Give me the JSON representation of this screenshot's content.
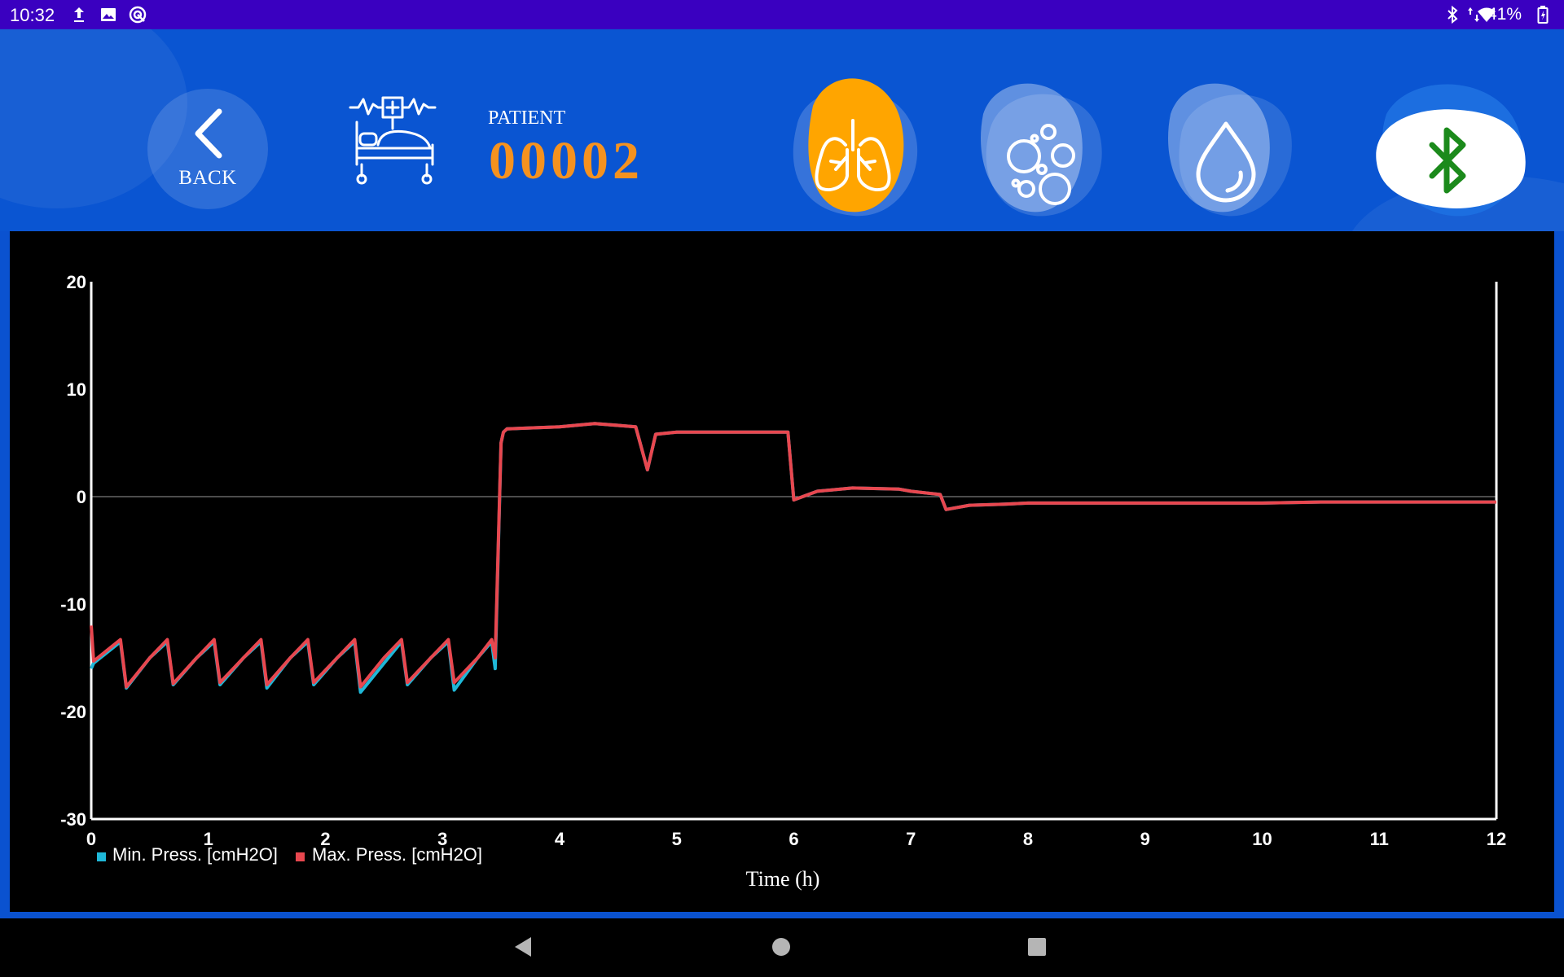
{
  "status_bar": {
    "time": "10:32",
    "battery": "41%",
    "icons": [
      "upload-icon",
      "image-icon",
      "sync-icon",
      "bluetooth-icon",
      "data-arrows-icon",
      "wifi-icon",
      "battery-icon"
    ]
  },
  "header": {
    "back_label": "BACK",
    "patient_label": "PATIENT",
    "patient_id": "00002",
    "modes": [
      {
        "name": "lungs-icon",
        "active": true
      },
      {
        "name": "bubbles-icon",
        "active": false
      },
      {
        "name": "drop-icon",
        "active": false
      },
      {
        "name": "bluetooth-icon",
        "active": true
      }
    ]
  },
  "colors": {
    "header_bg": "#0a55d2",
    "status_bg": "#3a00c0",
    "accent_orange": "#ffa500",
    "patient_id_color": "#f5921f",
    "bluetooth_green": "#1b8a1b",
    "min_series": "#1fb8d8",
    "max_series": "#e8474f"
  },
  "chart_data": {
    "type": "line",
    "xlabel": "Time (h)",
    "xlim": [
      0,
      12
    ],
    "ylim": [
      -30,
      20
    ],
    "xticks": [
      "0",
      "1",
      "2",
      "3",
      "4",
      "5",
      "6",
      "7",
      "8",
      "9",
      "10",
      "11",
      "12"
    ],
    "yticks": [
      "20",
      "10",
      "0",
      "-10",
      "-20",
      "-30"
    ],
    "grid": "zero-line only",
    "legend_placement": "bottom-left",
    "series": [
      {
        "name": "Min. Press. [cmH2O]",
        "color": "#1fb8d8",
        "points": [
          [
            0,
            -16
          ],
          [
            0.02,
            -15.5
          ],
          [
            0.25,
            -13.5
          ],
          [
            0.3,
            -17.8
          ],
          [
            0.5,
            -15
          ],
          [
            0.65,
            -13.5
          ],
          [
            0.7,
            -17.5
          ],
          [
            0.9,
            -15
          ],
          [
            1.05,
            -13.5
          ],
          [
            1.1,
            -17.5
          ],
          [
            1.3,
            -15
          ],
          [
            1.45,
            -13.5
          ],
          [
            1.5,
            -17.8
          ],
          [
            1.7,
            -15
          ],
          [
            1.85,
            -13.5
          ],
          [
            1.9,
            -17.5
          ],
          [
            2.1,
            -15
          ],
          [
            2.25,
            -13.5
          ],
          [
            2.3,
            -18.2
          ],
          [
            2.5,
            -15.5
          ],
          [
            2.65,
            -13.5
          ],
          [
            2.7,
            -17.5
          ],
          [
            2.9,
            -15
          ],
          [
            3.05,
            -13.5
          ],
          [
            3.1,
            -18
          ],
          [
            3.3,
            -15
          ],
          [
            3.42,
            -13.5
          ],
          [
            3.45,
            -16
          ],
          [
            3.5,
            5
          ],
          [
            3.52,
            6
          ],
          [
            3.55,
            6.3
          ],
          [
            4.0,
            6.5
          ],
          [
            4.3,
            6.8
          ],
          [
            4.65,
            6.5
          ],
          [
            4.75,
            2.5
          ],
          [
            4.82,
            5.8
          ],
          [
            5.0,
            6
          ],
          [
            5.6,
            6
          ],
          [
            5.95,
            6
          ],
          [
            6.0,
            -0.3
          ],
          [
            6.2,
            0.5
          ],
          [
            6.5,
            0.8
          ],
          [
            6.9,
            0.7
          ],
          [
            7.0,
            0.5
          ],
          [
            7.25,
            0.2
          ],
          [
            7.3,
            -1.2
          ],
          [
            7.5,
            -0.8
          ],
          [
            7.8,
            -0.7
          ],
          [
            8.0,
            -0.6
          ],
          [
            9.0,
            -0.6
          ],
          [
            10.0,
            -0.6
          ],
          [
            10.5,
            -0.5
          ],
          [
            11.0,
            -0.5
          ],
          [
            11.5,
            -0.5
          ],
          [
            12.0,
            -0.5
          ]
        ]
      },
      {
        "name": "Max. Press. [cmH2O]",
        "color": "#e8474f",
        "points": [
          [
            0,
            -12
          ],
          [
            0.02,
            -15.3
          ],
          [
            0.25,
            -13.3
          ],
          [
            0.3,
            -17.7
          ],
          [
            0.5,
            -15
          ],
          [
            0.65,
            -13.3
          ],
          [
            0.7,
            -17.4
          ],
          [
            0.9,
            -15
          ],
          [
            1.05,
            -13.3
          ],
          [
            1.1,
            -17.3
          ],
          [
            1.3,
            -15
          ],
          [
            1.45,
            -13.3
          ],
          [
            1.5,
            -17.5
          ],
          [
            1.7,
            -15
          ],
          [
            1.85,
            -13.3
          ],
          [
            1.9,
            -17.3
          ],
          [
            2.1,
            -15
          ],
          [
            2.25,
            -13.3
          ],
          [
            2.3,
            -17.7
          ],
          [
            2.5,
            -15
          ],
          [
            2.65,
            -13.3
          ],
          [
            2.7,
            -17.3
          ],
          [
            2.9,
            -15
          ],
          [
            3.05,
            -13.3
          ],
          [
            3.1,
            -17.3
          ],
          [
            3.3,
            -15
          ],
          [
            3.42,
            -13.3
          ],
          [
            3.45,
            -15
          ],
          [
            3.5,
            5
          ],
          [
            3.52,
            6
          ],
          [
            3.55,
            6.3
          ],
          [
            4.0,
            6.5
          ],
          [
            4.3,
            6.8
          ],
          [
            4.65,
            6.5
          ],
          [
            4.75,
            2.5
          ],
          [
            4.82,
            5.8
          ],
          [
            5.0,
            6
          ],
          [
            5.6,
            6
          ],
          [
            5.95,
            6
          ],
          [
            6.0,
            -0.3
          ],
          [
            6.2,
            0.5
          ],
          [
            6.5,
            0.8
          ],
          [
            6.9,
            0.7
          ],
          [
            7.0,
            0.5
          ],
          [
            7.25,
            0.2
          ],
          [
            7.3,
            -1.2
          ],
          [
            7.5,
            -0.8
          ],
          [
            7.8,
            -0.7
          ],
          [
            8.0,
            -0.6
          ],
          [
            9.0,
            -0.6
          ],
          [
            10.0,
            -0.6
          ],
          [
            10.5,
            -0.5
          ],
          [
            11.0,
            -0.5
          ],
          [
            11.5,
            -0.5
          ],
          [
            12.0,
            -0.5
          ]
        ]
      }
    ]
  },
  "nav_bar": {
    "buttons": [
      "back-nav-button",
      "home-nav-button",
      "recents-nav-button"
    ]
  }
}
